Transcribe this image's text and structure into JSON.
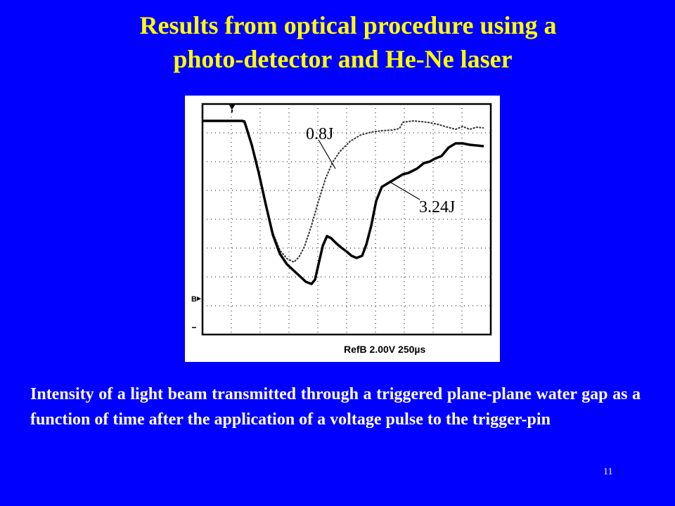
{
  "title": {
    "line1": "Results from optical procedure using a",
    "line2": "photo-detector and He-Ne laser"
  },
  "figure": {
    "label_curve_a": "0.8J",
    "label_curve_b": "3.24J",
    "channel_marker": "B",
    "scope_readout": "RefB 2.00V 250µs"
  },
  "caption": "Intensity of a light beam transmitted through a triggered plane-plane water gap as a function of time after the application of a voltage pulse to the trigger-pin",
  "slide_number": "11",
  "colors": {
    "background": "#0000ff",
    "title": "#ffff00",
    "caption": "#ffffff"
  }
}
